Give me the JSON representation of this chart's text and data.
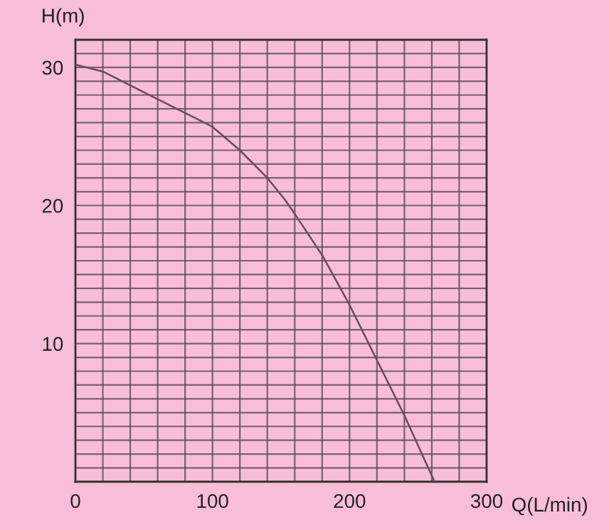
{
  "chart_data": {
    "type": "line",
    "xlabel": "Q(L/min)",
    "ylabel": "H(m)",
    "x": [
      0,
      20,
      60,
      100,
      120,
      140,
      153,
      160,
      180,
      200,
      220,
      240,
      262
    ],
    "series": [
      {
        "color": "#6a4a66",
        "values": [
          30.2,
          29.7,
          27.7,
          25.7,
          24.0,
          22.0,
          20.4,
          19.4,
          16.4,
          12.8,
          8.8,
          4.8,
          0
        ]
      }
    ],
    "xlim": [
      0,
      300
    ],
    "ylim": [
      0,
      32
    ],
    "xticks": [
      0,
      {
        "value": 20,
        "label": null
      },
      {
        "value": 40,
        "label": null
      },
      {
        "value": 60,
        "label": null
      },
      {
        "value": 80,
        "label": null
      },
      100,
      {
        "value": 120,
        "label": null
      },
      {
        "value": 140,
        "label": null
      },
      {
        "value": 160,
        "label": null
      },
      {
        "value": 180,
        "label": null
      },
      200,
      {
        "value": 220,
        "label": null
      },
      {
        "value": 240,
        "label": null
      },
      {
        "value": 260,
        "label": null
      },
      {
        "value": 280,
        "label": null
      },
      300
    ],
    "yticks": [
      {
        "value": 0,
        "label": null
      },
      {
        "value": 1,
        "label": null
      },
      {
        "value": 2,
        "label": null
      },
      {
        "value": 3,
        "label": null
      },
      {
        "value": 4,
        "label": null
      },
      {
        "value": 5,
        "label": null
      },
      {
        "value": 6,
        "label": null
      },
      {
        "value": 7,
        "label": null
      },
      {
        "value": 8,
        "label": null
      },
      {
        "value": 9,
        "label": null
      },
      10,
      {
        "value": 11,
        "label": null
      },
      {
        "value": 12,
        "label": null
      },
      {
        "value": 13,
        "label": null
      },
      {
        "value": 14,
        "label": null
      },
      {
        "value": 15,
        "label": null
      },
      {
        "value": 16,
        "label": null
      },
      {
        "value": 17,
        "label": null
      },
      {
        "value": 18,
        "label": null
      },
      {
        "value": 19,
        "label": null
      },
      20,
      {
        "value": 21,
        "label": null
      },
      {
        "value": 22,
        "label": null
      },
      {
        "value": 23,
        "label": null
      },
      {
        "value": 24,
        "label": null
      },
      {
        "value": 25,
        "label": null
      },
      {
        "value": 26,
        "label": null
      },
      {
        "value": 27,
        "label": null
      },
      {
        "value": 28,
        "label": null
      },
      {
        "value": 29,
        "label": null
      },
      30,
      {
        "value": 31,
        "label": null
      },
      {
        "value": 32,
        "label": null
      }
    ],
    "grid": true,
    "legend": false,
    "marker": "none",
    "line_style": "solid"
  }
}
